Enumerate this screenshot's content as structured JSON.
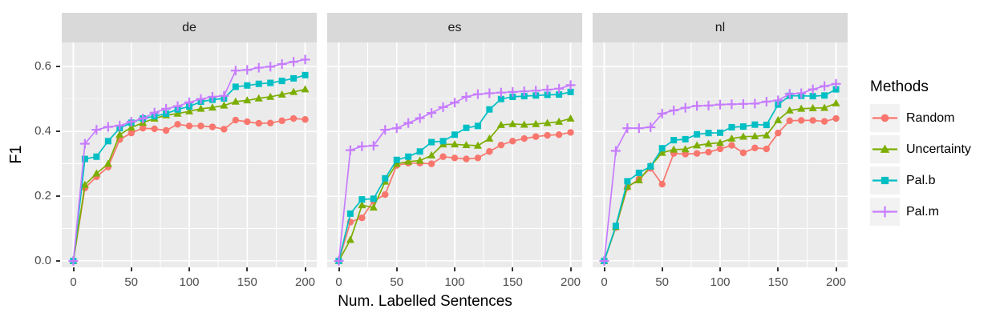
{
  "chart_data": {
    "type": "line",
    "title": "",
    "xlabel": "Num. Labelled Sentences",
    "ylabel": "F1",
    "legend_title": "Methods",
    "legend_position": "right",
    "grid": true,
    "x": [
      0,
      10,
      20,
      30,
      40,
      50,
      60,
      70,
      80,
      90,
      100,
      110,
      120,
      130,
      140,
      150,
      160,
      170,
      180,
      190,
      200
    ],
    "xlim": [
      -10,
      210
    ],
    "ylim": [
      -0.02,
      0.675
    ],
    "x_ticks": [
      0,
      50,
      100,
      150,
      200
    ],
    "x_tick_labels": [
      "0",
      "50",
      "100",
      "150",
      "200"
    ],
    "x_minor_ticks": [
      25,
      75,
      125,
      175
    ],
    "y_ticks": [
      0.0,
      0.2,
      0.4,
      0.6
    ],
    "y_tick_labels": [
      "0.0",
      "0.2",
      "0.4",
      "0.6"
    ],
    "y_minor_ticks": [
      0.1,
      0.3,
      0.5
    ],
    "colors": {
      "panel_bg": "#EBEBEB",
      "strip_bg": "#D9D9D9",
      "grid": "#FFFFFF",
      "tick": "#333333",
      "tick_text": "#4d4d4d"
    },
    "series_meta": [
      {
        "name": "Random",
        "color": "#F8766D",
        "marker": "circle"
      },
      {
        "name": "Uncertainty",
        "color": "#7CAE00",
        "marker": "triangle"
      },
      {
        "name": "Pal.b",
        "color": "#00BFC4",
        "marker": "square"
      },
      {
        "name": "Pal.m",
        "color": "#C77CFF",
        "marker": "plus"
      }
    ],
    "facets": [
      {
        "label": "de",
        "series": [
          {
            "name": "Random",
            "values": [
              0,
              0.225,
              0.26,
              0.29,
              0.375,
              0.395,
              0.41,
              0.408,
              0.403,
              0.422,
              0.417,
              0.417,
              0.414,
              0.407,
              0.435,
              0.43,
              0.425,
              0.426,
              0.433,
              0.44,
              0.437
            ]
          },
          {
            "name": "Uncertainty",
            "values": [
              0,
              0.235,
              0.27,
              0.3,
              0.39,
              0.412,
              0.427,
              0.44,
              0.45,
              0.455,
              0.462,
              0.47,
              0.474,
              0.48,
              0.492,
              0.496,
              0.502,
              0.507,
              0.514,
              0.522,
              0.53
            ]
          },
          {
            "name": "Pal.b",
            "values": [
              0,
              0.315,
              0.322,
              0.37,
              0.41,
              0.427,
              0.44,
              0.447,
              0.455,
              0.468,
              0.477,
              0.492,
              0.498,
              0.502,
              0.538,
              0.542,
              0.547,
              0.55,
              0.556,
              0.564,
              0.574
            ]
          },
          {
            "name": "Pal.m",
            "values": [
              0,
              0.362,
              0.405,
              0.414,
              0.418,
              0.43,
              0.44,
              0.458,
              0.47,
              0.478,
              0.49,
              0.5,
              0.507,
              0.51,
              0.588,
              0.59,
              0.597,
              0.6,
              0.608,
              0.615,
              0.622
            ]
          }
        ]
      },
      {
        "label": "es",
        "series": [
          {
            "name": "Random",
            "values": [
              0,
              0.12,
              0.133,
              0.185,
              0.205,
              0.295,
              0.302,
              0.302,
              0.3,
              0.322,
              0.318,
              0.315,
              0.318,
              0.338,
              0.358,
              0.37,
              0.378,
              0.384,
              0.388,
              0.39,
              0.397
            ]
          },
          {
            "name": "Uncertainty",
            "values": [
              0,
              0.065,
              0.172,
              0.165,
              0.245,
              0.3,
              0.307,
              0.31,
              0.326,
              0.36,
              0.36,
              0.358,
              0.356,
              0.378,
              0.42,
              0.423,
              0.421,
              0.423,
              0.426,
              0.43,
              0.44
            ]
          },
          {
            "name": "Pal.b",
            "values": [
              0,
              0.146,
              0.19,
              0.192,
              0.255,
              0.312,
              0.322,
              0.338,
              0.367,
              0.37,
              0.39,
              0.411,
              0.417,
              0.468,
              0.5,
              0.507,
              0.509,
              0.511,
              0.513,
              0.514,
              0.522
            ]
          },
          {
            "name": "Pal.m",
            "values": [
              0,
              0.342,
              0.354,
              0.356,
              0.405,
              0.41,
              0.426,
              0.441,
              0.457,
              0.475,
              0.489,
              0.507,
              0.515,
              0.518,
              0.52,
              0.522,
              0.524,
              0.526,
              0.529,
              0.532,
              0.543
            ]
          }
        ]
      },
      {
        "label": "nl",
        "series": [
          {
            "name": "Random",
            "values": [
              0,
              0.103,
              0.227,
              0.253,
              0.286,
              0.237,
              0.332,
              0.33,
              0.332,
              0.336,
              0.346,
              0.357,
              0.334,
              0.349,
              0.346,
              0.395,
              0.433,
              0.434,
              0.434,
              0.431,
              0.44
            ]
          },
          {
            "name": "Uncertainty",
            "values": [
              0,
              0.105,
              0.23,
              0.249,
              0.293,
              0.334,
              0.344,
              0.345,
              0.357,
              0.362,
              0.365,
              0.378,
              0.384,
              0.385,
              0.388,
              0.435,
              0.465,
              0.47,
              0.472,
              0.473,
              0.487
            ]
          },
          {
            "name": "Pal.b",
            "values": [
              0,
              0.108,
              0.246,
              0.272,
              0.292,
              0.348,
              0.373,
              0.376,
              0.391,
              0.395,
              0.396,
              0.413,
              0.415,
              0.421,
              0.42,
              0.483,
              0.51,
              0.51,
              0.509,
              0.511,
              0.53
            ]
          },
          {
            "name": "Pal.m",
            "values": [
              0,
              0.34,
              0.41,
              0.41,
              0.413,
              0.455,
              0.465,
              0.473,
              0.479,
              0.48,
              0.483,
              0.484,
              0.485,
              0.486,
              0.492,
              0.496,
              0.516,
              0.518,
              0.53,
              0.54,
              0.547
            ]
          }
        ]
      }
    ]
  }
}
